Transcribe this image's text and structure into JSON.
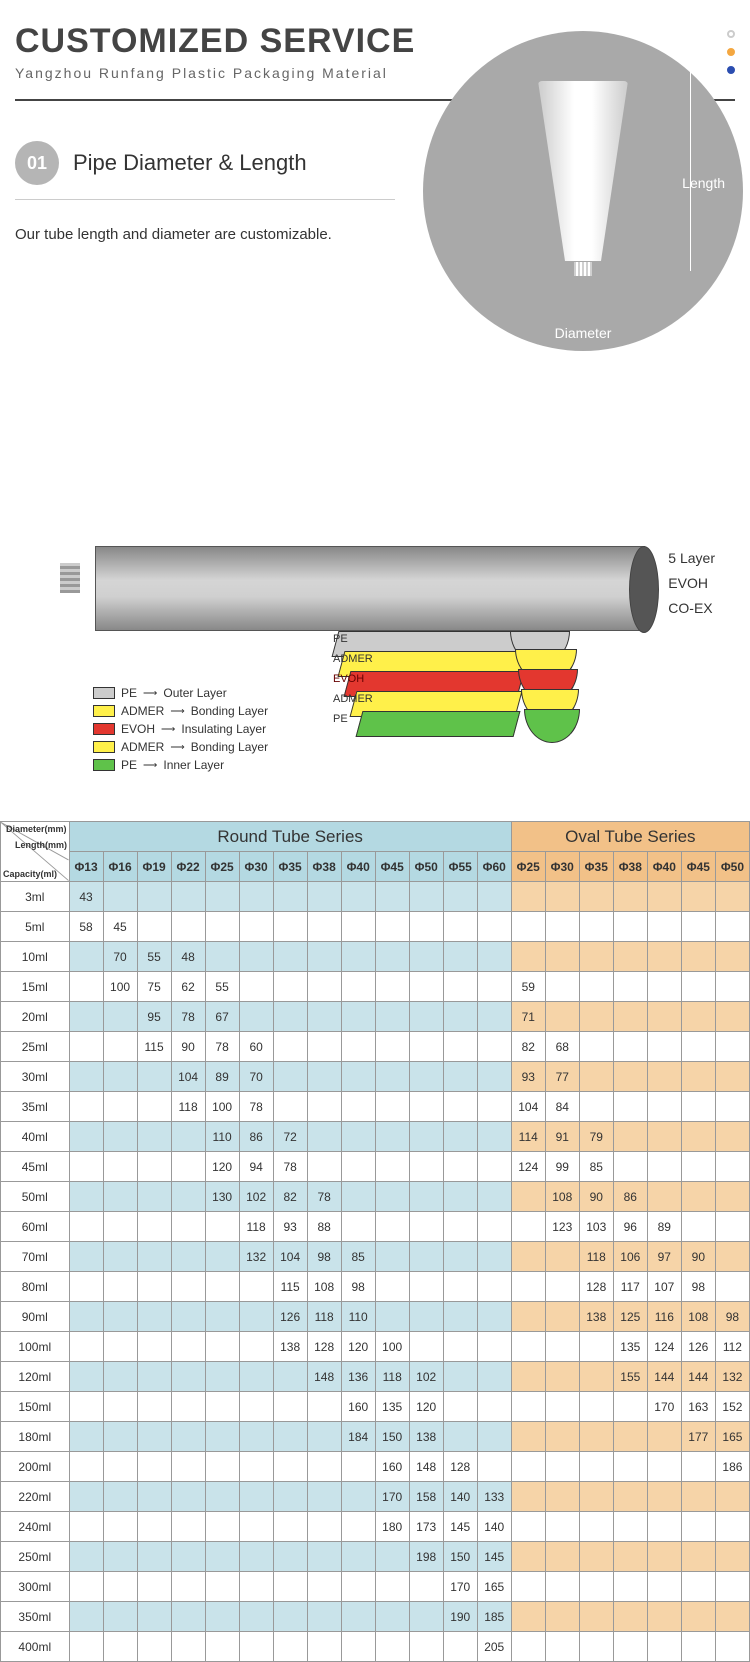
{
  "header": {
    "title": "CUSTOMIZED SERVICE",
    "subtitle": "Yangzhou Runfang Plastic Packaging Material"
  },
  "section1": {
    "num": "01",
    "title": "Pipe Diameter & Length",
    "desc": "Our tube length and diameter are customizable.",
    "length_label": "Length",
    "diameter_label": "Diameter"
  },
  "side_labels": {
    "l1": "5 Layer",
    "l2": "EVOH",
    "l3": "CO-EX"
  },
  "layer_labels": {
    "pe": "PE",
    "admer": "ADMER",
    "evoh": "EVOH"
  },
  "legend": [
    {
      "sw": "pe",
      "mat": "PE",
      "role": "Outer Layer"
    },
    {
      "sw": "ad",
      "mat": "ADMER",
      "role": "Bonding Layer"
    },
    {
      "sw": "ev",
      "mat": "EVOH",
      "role": "Insulating Layer"
    },
    {
      "sw": "ad",
      "mat": "ADMER",
      "role": "Bonding Layer"
    },
    {
      "sw": "pe2",
      "mat": "PE",
      "role": "Inner Layer"
    }
  ],
  "corner": {
    "d": "Diameter(mm)",
    "l": "Length(mm)",
    "c": "Capacity(ml)"
  },
  "series": {
    "round": "Round Tube Series",
    "oval": "Oval Tube Series"
  },
  "round_cols": [
    "Φ13",
    "Φ16",
    "Φ19",
    "Φ22",
    "Φ25",
    "Φ30",
    "Φ35",
    "Φ38",
    "Φ40",
    "Φ45",
    "Φ50",
    "Φ55",
    "Φ60"
  ],
  "oval_cols": [
    "Φ25",
    "Φ30",
    "Φ35",
    "Φ38",
    "Φ40",
    "Φ45",
    "Φ50"
  ],
  "rows": [
    {
      "cap": "3ml",
      "r": [
        "43",
        "",
        "",
        "",
        "",
        "",
        "",
        "",
        "",
        "",
        "",
        "",
        ""
      ],
      "o": [
        "",
        "",
        "",
        "",
        "",
        "",
        ""
      ]
    },
    {
      "cap": "5ml",
      "r": [
        "58",
        "45",
        "",
        "",
        "",
        "",
        "",
        "",
        "",
        "",
        "",
        "",
        ""
      ],
      "o": [
        "",
        "",
        "",
        "",
        "",
        "",
        ""
      ]
    },
    {
      "cap": "10ml",
      "r": [
        "",
        "70",
        "55",
        "48",
        "",
        "",
        "",
        "",
        "",
        "",
        "",
        "",
        ""
      ],
      "o": [
        "",
        "",
        "",
        "",
        "",
        "",
        ""
      ]
    },
    {
      "cap": "15ml",
      "r": [
        "",
        "100",
        "75",
        "62",
        "55",
        "",
        "",
        "",
        "",
        "",
        "",
        "",
        ""
      ],
      "o": [
        "59",
        "",
        "",
        "",
        "",
        "",
        ""
      ]
    },
    {
      "cap": "20ml",
      "r": [
        "",
        "",
        "95",
        "78",
        "67",
        "",
        "",
        "",
        "",
        "",
        "",
        "",
        ""
      ],
      "o": [
        "71",
        "",
        "",
        "",
        "",
        "",
        ""
      ]
    },
    {
      "cap": "25ml",
      "r": [
        "",
        "",
        "115",
        "90",
        "78",
        "60",
        "",
        "",
        "",
        "",
        "",
        "",
        ""
      ],
      "o": [
        "82",
        "68",
        "",
        "",
        "",
        "",
        ""
      ]
    },
    {
      "cap": "30ml",
      "r": [
        "",
        "",
        "",
        "104",
        "89",
        "70",
        "",
        "",
        "",
        "",
        "",
        "",
        ""
      ],
      "o": [
        "93",
        "77",
        "",
        "",
        "",
        "",
        ""
      ]
    },
    {
      "cap": "35ml",
      "r": [
        "",
        "",
        "",
        "118",
        "100",
        "78",
        "",
        "",
        "",
        "",
        "",
        "",
        ""
      ],
      "o": [
        "104",
        "84",
        "",
        "",
        "",
        "",
        ""
      ]
    },
    {
      "cap": "40ml",
      "r": [
        "",
        "",
        "",
        "",
        "110",
        "86",
        "72",
        "",
        "",
        "",
        "",
        "",
        ""
      ],
      "o": [
        "114",
        "91",
        "79",
        "",
        "",
        "",
        ""
      ]
    },
    {
      "cap": "45ml",
      "r": [
        "",
        "",
        "",
        "",
        "120",
        "94",
        "78",
        "",
        "",
        "",
        "",
        "",
        ""
      ],
      "o": [
        "124",
        "99",
        "85",
        "",
        "",
        "",
        ""
      ]
    },
    {
      "cap": "50ml",
      "r": [
        "",
        "",
        "",
        "",
        "130",
        "102",
        "82",
        "78",
        "",
        "",
        "",
        "",
        ""
      ],
      "o": [
        "",
        "108",
        "90",
        "86",
        "",
        "",
        ""
      ]
    },
    {
      "cap": "60ml",
      "r": [
        "",
        "",
        "",
        "",
        "",
        "118",
        "93",
        "88",
        "",
        "",
        "",
        "",
        ""
      ],
      "o": [
        "",
        "123",
        "103",
        "96",
        "89",
        "",
        ""
      ]
    },
    {
      "cap": "70ml",
      "r": [
        "",
        "",
        "",
        "",
        "",
        "132",
        "104",
        "98",
        "85",
        "",
        "",
        "",
        ""
      ],
      "o": [
        "",
        "",
        "118",
        "106",
        "97",
        "90",
        ""
      ]
    },
    {
      "cap": "80ml",
      "r": [
        "",
        "",
        "",
        "",
        "",
        "",
        "115",
        "108",
        "98",
        "",
        "",
        "",
        ""
      ],
      "o": [
        "",
        "",
        "128",
        "117",
        "107",
        "98",
        ""
      ]
    },
    {
      "cap": "90ml",
      "r": [
        "",
        "",
        "",
        "",
        "",
        "",
        "126",
        "118",
        "110",
        "",
        "",
        "",
        ""
      ],
      "o": [
        "",
        "",
        "138",
        "125",
        "116",
        "108",
        "98"
      ]
    },
    {
      "cap": "100ml",
      "r": [
        "",
        "",
        "",
        "",
        "",
        "",
        "138",
        "128",
        "120",
        "100",
        "",
        "",
        ""
      ],
      "o": [
        "",
        "",
        "",
        "135",
        "124",
        "126",
        "112"
      ]
    },
    {
      "cap": "120ml",
      "r": [
        "",
        "",
        "",
        "",
        "",
        "",
        "",
        "148",
        "136",
        "118",
        "102",
        "",
        ""
      ],
      "o": [
        "",
        "",
        "",
        "155",
        "144",
        "144",
        "132"
      ]
    },
    {
      "cap": "150ml",
      "r": [
        "",
        "",
        "",
        "",
        "",
        "",
        "",
        "",
        "160",
        "135",
        "120",
        "",
        ""
      ],
      "o": [
        "",
        "",
        "",
        "",
        "170",
        "163",
        "152"
      ]
    },
    {
      "cap": "180ml",
      "r": [
        "",
        "",
        "",
        "",
        "",
        "",
        "",
        "",
        "184",
        "150",
        "138",
        "",
        ""
      ],
      "o": [
        "",
        "",
        "",
        "",
        "",
        "177",
        "165"
      ]
    },
    {
      "cap": "200ml",
      "r": [
        "",
        "",
        "",
        "",
        "",
        "",
        "",
        "",
        "",
        "160",
        "148",
        "128",
        ""
      ],
      "o": [
        "",
        "",
        "",
        "",
        "",
        "",
        "186"
      ]
    },
    {
      "cap": "220ml",
      "r": [
        "",
        "",
        "",
        "",
        "",
        "",
        "",
        "",
        "",
        "170",
        "158",
        "140",
        "133"
      ],
      "o": [
        "",
        "",
        "",
        "",
        "",
        "",
        ""
      ]
    },
    {
      "cap": "240ml",
      "r": [
        "",
        "",
        "",
        "",
        "",
        "",
        "",
        "",
        "",
        "180",
        "173",
        "145",
        "140"
      ],
      "o": [
        "",
        "",
        "",
        "",
        "",
        "",
        ""
      ]
    },
    {
      "cap": "250ml",
      "r": [
        "",
        "",
        "",
        "",
        "",
        "",
        "",
        "",
        "",
        "",
        "198",
        "150",
        "145"
      ],
      "o": [
        "",
        "",
        "",
        "",
        "",
        "",
        ""
      ]
    },
    {
      "cap": "300ml",
      "r": [
        "",
        "",
        "",
        "",
        "",
        "",
        "",
        "",
        "",
        "",
        "",
        "170",
        "165"
      ],
      "o": [
        "",
        "",
        "",
        "",
        "",
        "",
        ""
      ]
    },
    {
      "cap": "350ml",
      "r": [
        "",
        "",
        "",
        "",
        "",
        "",
        "",
        "",
        "",
        "",
        "",
        "190",
        "185"
      ],
      "o": [
        "",
        "",
        "",
        "",
        "",
        "",
        ""
      ]
    },
    {
      "cap": "400ml",
      "r": [
        "",
        "",
        "",
        "",
        "",
        "",
        "",
        "",
        "",
        "",
        "",
        "",
        "205"
      ],
      "o": [
        "",
        "",
        "",
        "",
        "",
        "",
        ""
      ]
    }
  ]
}
